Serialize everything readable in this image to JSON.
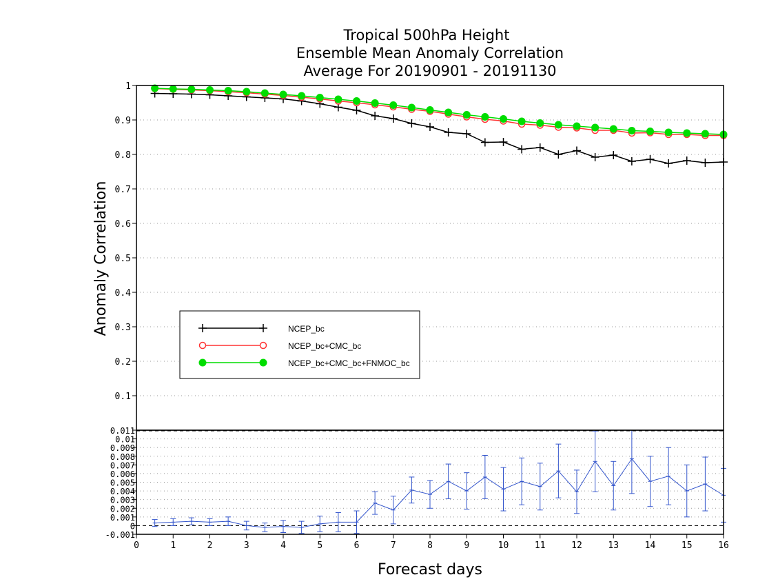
{
  "chart_data": [
    {
      "type": "line",
      "title_lines": [
        "Tropical 500hPa Height",
        "Ensemble Mean Anomaly Correlation",
        "Average For 20190901 - 20191130"
      ],
      "ylabel": "Anomaly Correlation",
      "xlim": [
        0,
        16
      ],
      "ylim": [
        0,
        1
      ],
      "y_ticks": [
        "0.1",
        "0.2",
        "0.3",
        "0.4",
        "0.5",
        "0.6",
        "0.7",
        "0.8",
        "0.9",
        "1"
      ],
      "grid": true,
      "legend_position": "lower-left",
      "x": [
        0.5,
        1,
        1.5,
        2,
        2.5,
        3,
        3.5,
        4,
        4.5,
        5,
        5.5,
        6,
        6.5,
        7,
        7.5,
        8,
        8.5,
        9,
        9.5,
        10,
        10.5,
        11,
        11.5,
        12,
        12.5,
        13,
        13.5,
        14,
        14.5,
        15,
        15.5,
        16
      ],
      "series": [
        {
          "name": "NCEP_bc",
          "color": "#000000",
          "marker": "plus",
          "values": [
            0.977,
            0.976,
            0.975,
            0.973,
            0.97,
            0.967,
            0.964,
            0.961,
            0.955,
            0.947,
            0.937,
            0.928,
            0.912,
            0.904,
            0.89,
            0.88,
            0.864,
            0.86,
            0.835,
            0.836,
            0.815,
            0.82,
            0.8,
            0.811,
            0.792,
            0.798,
            0.78,
            0.786,
            0.774,
            0.782,
            0.776,
            0.778
          ]
        },
        {
          "name": "NCEP_bc+CMC_bc",
          "color": "#ff3333",
          "marker": "open-circle",
          "values": [
            0.991,
            0.989,
            0.987,
            0.985,
            0.982,
            0.979,
            0.975,
            0.971,
            0.966,
            0.961,
            0.955,
            0.95,
            0.944,
            0.938,
            0.931,
            0.925,
            0.917,
            0.909,
            0.902,
            0.897,
            0.888,
            0.885,
            0.879,
            0.877,
            0.87,
            0.87,
            0.862,
            0.863,
            0.858,
            0.858,
            0.855,
            0.855
          ]
        },
        {
          "name": "NCEP_bc+CMC_bc+FNMOC_bc",
          "color": "#00dd00",
          "marker": "filled-circle",
          "values": [
            0.992,
            0.99,
            0.989,
            0.987,
            0.985,
            0.982,
            0.978,
            0.974,
            0.97,
            0.965,
            0.96,
            0.955,
            0.949,
            0.943,
            0.936,
            0.929,
            0.922,
            0.915,
            0.909,
            0.903,
            0.896,
            0.891,
            0.886,
            0.882,
            0.878,
            0.874,
            0.869,
            0.867,
            0.864,
            0.862,
            0.86,
            0.858
          ]
        }
      ]
    },
    {
      "type": "line",
      "xlabel": "Forecast days",
      "xlim": [
        0,
        16
      ],
      "ylim": [
        -0.001,
        0.011
      ],
      "x_ticks": [
        "0",
        "1",
        "2",
        "3",
        "4",
        "5",
        "6",
        "7",
        "8",
        "9",
        "10",
        "11",
        "12",
        "13",
        "14",
        "15",
        "16"
      ],
      "y_ticks": [
        "-0.001",
        "0",
        "0.001",
        "0.002",
        "0.003",
        "0.004",
        "0.005",
        "0.006",
        "0.007",
        "0.008",
        "0.009",
        "0.01",
        "0.011"
      ],
      "grid": true,
      "x": [
        0.5,
        1,
        1.5,
        2,
        2.5,
        3,
        3.5,
        4,
        4.5,
        5,
        5.5,
        6,
        6.5,
        7,
        7.5,
        8,
        8.5,
        9,
        9.5,
        10,
        10.5,
        11,
        11.5,
        12,
        12.5,
        13,
        13.5,
        14,
        14.5,
        15,
        15.5,
        16
      ],
      "series": [
        {
          "name": "",
          "color": "#3355cc",
          "marker": "error-bar",
          "values": [
            0.0003,
            0.0004,
            0.0005,
            0.0004,
            0.0005,
            0.0,
            -0.0002,
            -0.0001,
            -0.0002,
            0.0002,
            0.0004,
            0.0004,
            0.0026,
            0.0018,
            0.0041,
            0.0036,
            0.0051,
            0.004,
            0.0056,
            0.0042,
            0.0051,
            0.0045,
            0.0063,
            0.0039,
            0.0074,
            0.0046,
            0.0077,
            0.0051,
            0.0057,
            0.004,
            0.0048,
            0.0035
          ],
          "errors": [
            0.0004,
            0.0004,
            0.0004,
            0.0004,
            0.0005,
            0.0005,
            0.0005,
            0.0007,
            0.0007,
            0.0009,
            0.0011,
            0.0013,
            0.0013,
            0.0016,
            0.0015,
            0.0016,
            0.002,
            0.0021,
            0.0025,
            0.0025,
            0.0027,
            0.0027,
            0.0031,
            0.0025,
            0.0035,
            0.0028,
            0.004,
            0.0029,
            0.0033,
            0.003,
            0.0031,
            0.0031
          ]
        }
      ]
    }
  ]
}
